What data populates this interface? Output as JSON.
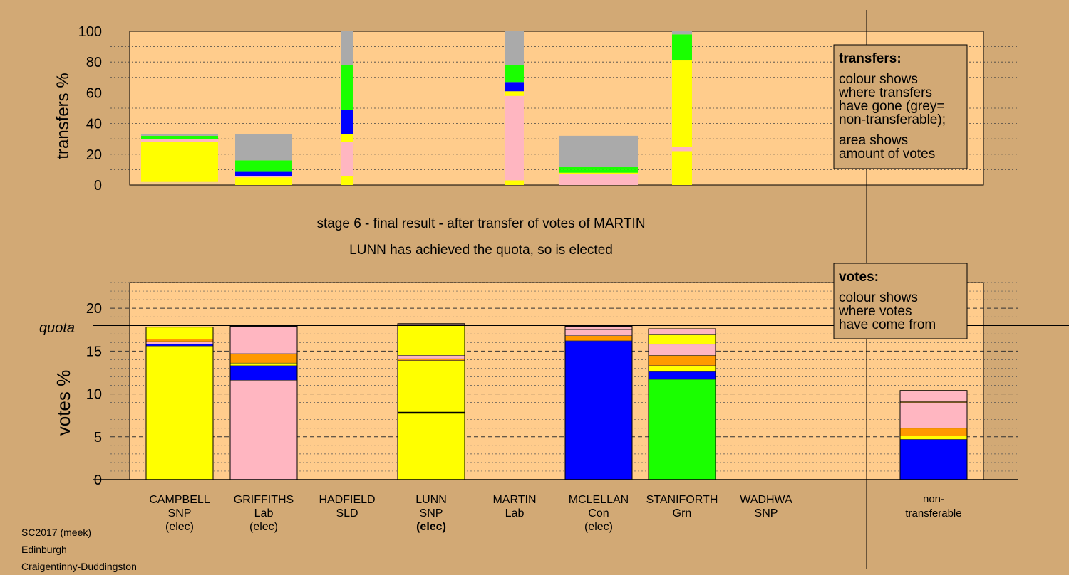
{
  "chart_data": [
    {
      "type": "bar",
      "ylabel": "transfers %",
      "ylim": [
        0,
        100
      ],
      "yticks": [
        0,
        20,
        40,
        60,
        80,
        100
      ],
      "grid": true,
      "columns": [
        {
          "candidate": "CAMPBELL",
          "segments": [
            {
              "from": 1,
              "to": 2,
              "color": "#f4ce8c"
            },
            {
              "from": 2,
              "to": 28,
              "color": "#ffff00"
            },
            {
              "from": 28,
              "to": 30,
              "color": "#ffb6c1"
            },
            {
              "from": 30,
              "to": 32,
              "color": "#1aff00"
            },
            {
              "from": 32,
              "to": 33,
              "color": "#aaaaaa"
            }
          ]
        },
        {
          "candidate": "GRIFFITHS",
          "segments": [
            {
              "from": 0,
              "to": 5,
              "color": "#ffff00"
            },
            {
              "from": 5,
              "to": 6,
              "color": "#ffb6c1"
            },
            {
              "from": 6,
              "to": 9,
              "color": "#0000ff"
            },
            {
              "from": 9,
              "to": 16,
              "color": "#1aff00"
            },
            {
              "from": 16,
              "to": 33,
              "color": "#aaaaaa"
            }
          ]
        },
        {
          "candidate": "HADFIELD",
          "segments": [
            {
              "from": 0,
              "to": 6,
              "color": "#ffff00"
            },
            {
              "from": 6,
              "to": 28,
              "color": "#ffb6c1"
            },
            {
              "from": 28,
              "to": 33,
              "color": "#ffff00"
            },
            {
              "from": 33,
              "to": 49,
              "color": "#0000ff"
            },
            {
              "from": 49,
              "to": 78,
              "color": "#1aff00"
            },
            {
              "from": 78,
              "to": 100,
              "color": "#aaaaaa"
            }
          ]
        },
        {
          "candidate": "MARTIN",
          "segments": [
            {
              "from": 0,
              "to": 3,
              "color": "#ffff00"
            },
            {
              "from": 3,
              "to": 58,
              "color": "#ffb6c1"
            },
            {
              "from": 58,
              "to": 61,
              "color": "#ffff00"
            },
            {
              "from": 61,
              "to": 67,
              "color": "#0000ff"
            },
            {
              "from": 67,
              "to": 78,
              "color": "#1aff00"
            },
            {
              "from": 78,
              "to": 100,
              "color": "#aaaaaa"
            }
          ]
        },
        {
          "candidate": "MCLELLAN",
          "segments": [
            {
              "from": 0,
              "to": 7,
              "color": "#ffb6c1"
            },
            {
              "from": 7,
              "to": 8,
              "color": "#ffff00"
            },
            {
              "from": 8,
              "to": 10,
              "color": "#1aff00"
            },
            {
              "from": 10,
              "to": 12,
              "color": "#1aff00"
            },
            {
              "from": 12,
              "to": 32,
              "color": "#aaaaaa"
            }
          ]
        },
        {
          "candidate": "STANIFORTH",
          "segments": [
            {
              "from": 0,
              "to": 22,
              "color": "#ffff00"
            },
            {
              "from": 22,
              "to": 25,
              "color": "#ffb6c1"
            },
            {
              "from": 25,
              "to": 81,
              "color": "#ffff00"
            },
            {
              "from": 81,
              "to": 98,
              "color": "#1aff00"
            },
            {
              "from": 98,
              "to": 100,
              "color": "#aaaaaa"
            }
          ]
        }
      ]
    },
    {
      "type": "bar",
      "ylabel": "votes %",
      "ylim": [
        0,
        23
      ],
      "yticks": [
        0,
        5,
        10,
        15,
        20
      ],
      "quota": 18,
      "quota_label": "quota",
      "categories": [
        "CAMPBELL",
        "GRIFFITHS",
        "HADFIELD",
        "LUNN",
        "MARTIN",
        "MCLELLAN",
        "STANIFORTH",
        "WADHWA",
        "non-transferable"
      ],
      "columns": [
        {
          "candidate": "CAMPBELL",
          "segments": [
            {
              "from": 0,
              "to": 15.6,
              "color": "#ffff00"
            },
            {
              "from": 15.6,
              "to": 15.8,
              "color": "#0000ff"
            },
            {
              "from": 15.8,
              "to": 16.1,
              "color": "#ffb6c1"
            },
            {
              "from": 16.1,
              "to": 16.4,
              "color": "#ff9900"
            },
            {
              "from": 16.4,
              "to": 17.8,
              "color": "#ffff00"
            }
          ]
        },
        {
          "candidate": "GRIFFITHS",
          "segments": [
            {
              "from": 0,
              "to": 11.6,
              "color": "#ffb6c1"
            },
            {
              "from": 11.6,
              "to": 13.3,
              "color": "#0000ff"
            },
            {
              "from": 13.3,
              "to": 13.6,
              "color": "#ffff00"
            },
            {
              "from": 13.6,
              "to": 14.7,
              "color": "#ff9900"
            },
            {
              "from": 14.7,
              "to": 17.9,
              "color": "#ffb6c1"
            }
          ]
        },
        {
          "candidate": "HADFIELD",
          "segments": []
        },
        {
          "candidate": "LUNN",
          "segments": [
            {
              "from": 0,
              "to": 7.8,
              "color": "#ffff00"
            },
            {
              "from": 7.8,
              "to": 13.9,
              "color": "#ffff00"
            },
            {
              "from": 13.9,
              "to": 14.1,
              "color": "#ff9900"
            },
            {
              "from": 14.1,
              "to": 14.5,
              "color": "#ffb6c1"
            },
            {
              "from": 14.5,
              "to": 18.1,
              "color": "#ffff00"
            },
            {
              "from": 18.1,
              "to": 18.2,
              "color": "#ffb6c1"
            }
          ]
        },
        {
          "candidate": "MARTIN",
          "segments": []
        },
        {
          "candidate": "MCLELLAN",
          "segments": [
            {
              "from": 0,
              "to": 16.2,
              "color": "#0000ff"
            },
            {
              "from": 16.2,
              "to": 16.8,
              "color": "#ff9900"
            },
            {
              "from": 16.8,
              "to": 17.5,
              "color": "#ffb6c1"
            },
            {
              "from": 17.5,
              "to": 17.9,
              "color": "#ffb6c1"
            }
          ]
        },
        {
          "candidate": "STANIFORTH",
          "segments": [
            {
              "from": 0,
              "to": 11.7,
              "color": "#1aff00"
            },
            {
              "from": 11.7,
              "to": 12.6,
              "color": "#0000ff"
            },
            {
              "from": 12.6,
              "to": 13.3,
              "color": "#ffff00"
            },
            {
              "from": 13.3,
              "to": 14.5,
              "color": "#ff9900"
            },
            {
              "from": 14.5,
              "to": 15.8,
              "color": "#ffb6c1"
            },
            {
              "from": 15.8,
              "to": 16.9,
              "color": "#ffff00"
            },
            {
              "from": 16.9,
              "to": 17.6,
              "color": "#ffb6c1"
            }
          ]
        },
        {
          "candidate": "WADHWA",
          "segments": []
        },
        {
          "candidate": "non-transferable",
          "segments": [
            {
              "from": 0,
              "to": 4.7,
              "color": "#0000ff"
            },
            {
              "from": 4.7,
              "to": 5.1,
              "color": "#ffff00"
            },
            {
              "from": 5.1,
              "to": 6.0,
              "color": "#ff9900"
            },
            {
              "from": 6.0,
              "to": 9.0,
              "color": "#ffb6c1"
            },
            {
              "from": 9.0,
              "to": 9.1,
              "color": "#ff9900"
            },
            {
              "from": 9.1,
              "to": 10.4,
              "color": "#ffb6c1"
            }
          ]
        }
      ]
    }
  ],
  "candidates": [
    {
      "name": "CAMPBELL",
      "party": "SNP",
      "status": "(elec)"
    },
    {
      "name": "GRIFFITHS",
      "party": "Lab",
      "status": "(elec)"
    },
    {
      "name": "HADFIELD",
      "party": "SLD",
      "status": ""
    },
    {
      "name": "LUNN",
      "party": "SNP",
      "status": "(elec)"
    },
    {
      "name": "MARTIN",
      "party": "Lab",
      "status": ""
    },
    {
      "name": "MCLELLAN",
      "party": "Con",
      "status": "(elec)"
    },
    {
      "name": "STANIFORTH",
      "party": "Grn",
      "status": ""
    },
    {
      "name": "WADHWA",
      "party": "SNP",
      "status": ""
    }
  ],
  "nontransferable_label": [
    "non-",
    "transferable"
  ],
  "stage_title": "stage 6 - final result - after transfer of votes of MARTIN",
  "stage_subtitle": "LUNN has achieved the quota, so is elected",
  "transfers_legend": {
    "title": "transfers:",
    "lines": [
      "colour shows",
      "where transfers",
      "have gone (grey=",
      "non-transferable);",
      "area shows",
      "amount of votes"
    ]
  },
  "votes_legend": {
    "title": "votes:",
    "lines": [
      "colour shows",
      "where votes",
      "have come from"
    ]
  },
  "footer": {
    "line1": "SC2017 (meek)",
    "line2": "Edinburgh",
    "line3": "Craigentinny-Duddingston"
  },
  "colors": {
    "background": "#d2a975",
    "panel": "#ffcc8c",
    "legend_box": "#d2a975"
  }
}
